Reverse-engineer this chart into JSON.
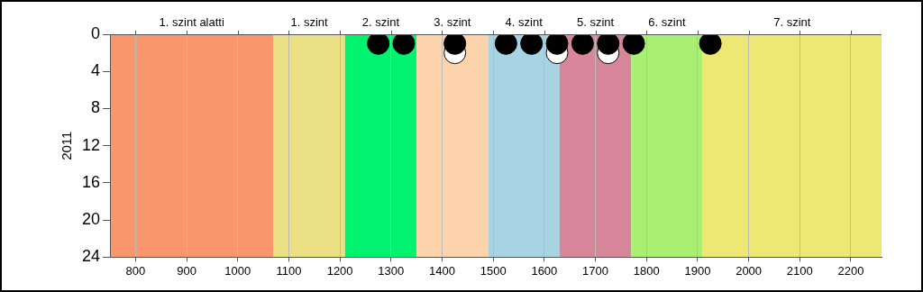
{
  "chart_data": {
    "type": "scatter",
    "ylabel": "2011",
    "xlim": [
      750,
      2260
    ],
    "xticks": [
      800,
      900,
      1000,
      1100,
      1200,
      1300,
      1400,
      1500,
      1600,
      1700,
      1800,
      1900,
      2000,
      2100,
      2200
    ],
    "ylim": [
      24,
      0
    ],
    "yticks": [
      0,
      4,
      8,
      12,
      16,
      20,
      24
    ],
    "series": [
      {
        "color": "#000000",
        "x": [
          1275,
          1325,
          1425,
          1525,
          1575,
          1625,
          1675,
          1725,
          1775,
          1925
        ],
        "values": [
          1,
          1,
          1,
          1,
          1,
          1,
          1,
          1,
          1,
          1
        ]
      },
      {
        "color": "#ffffff",
        "x": [
          1425,
          1625,
          1725
        ],
        "values": [
          2,
          2,
          2
        ]
      }
    ],
    "bands": [
      {
        "axis": "x",
        "from": 750,
        "to": 1070,
        "label": "1. szint alatti",
        "color": "#f9966b"
      },
      {
        "axis": "x",
        "from": 1070,
        "to": 1210,
        "label": "1. szint",
        "color": "#ebe184"
      },
      {
        "axis": "x",
        "from": 1210,
        "to": 1350,
        "label": "2. szint",
        "color": "#00f26f"
      },
      {
        "axis": "x",
        "from": 1350,
        "to": 1490,
        "label": "3. szint",
        "color": "#fdd3ac"
      },
      {
        "axis": "x",
        "from": 1490,
        "to": 1630,
        "label": "4. szint",
        "color": "#a8d3e3"
      },
      {
        "axis": "x",
        "from": 1630,
        "to": 1770,
        "label": "5. szint",
        "color": "#d8879a"
      },
      {
        "axis": "x",
        "from": 1770,
        "to": 1910,
        "label": "6. szint",
        "color": "#a8ef73"
      },
      {
        "axis": "x",
        "from": 1910,
        "to": 2260,
        "label": "7. szint",
        "color": "#ece873"
      }
    ],
    "grid": "x",
    "legend": false,
    "marker": "circle"
  }
}
